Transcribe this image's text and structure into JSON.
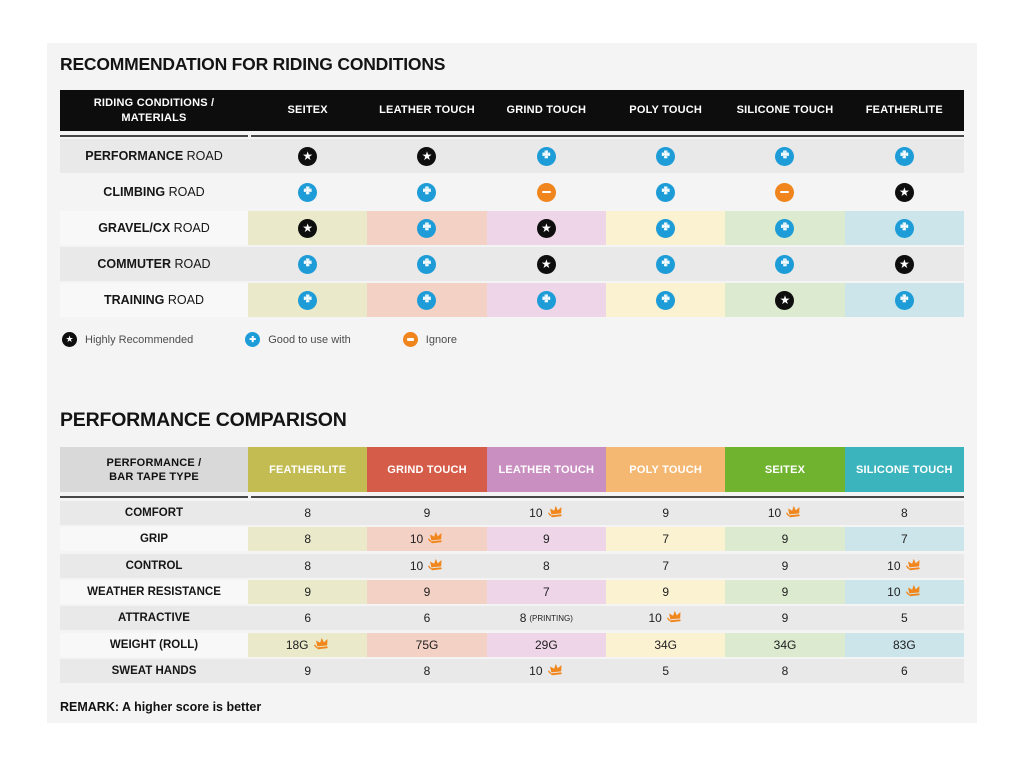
{
  "colors": {
    "blue": "#1d9cd8",
    "orange": "#f0851d",
    "black": "#0d0d0d",
    "crown": "#f0861c",
    "panel_bg": "#f4f4f4",
    "row_gray": "#e9e9e9",
    "tints": [
      "#eaeacb",
      "#f4d1c5",
      "#eed6e8",
      "#fbf2d2",
      "#dceacf",
      "#cbe5ea"
    ]
  },
  "rec": {
    "title": "RECOMMENDATION FOR RIDING CONDITIONS",
    "corner": [
      "RIDING CONDITIONS /",
      "MATERIALS"
    ],
    "columns": [
      "SEITEX",
      "LEATHER TOUCH",
      "GRIND TOUCH",
      "POLY TOUCH",
      "SILICONE TOUCH",
      "FEATHERLITE"
    ],
    "rows": [
      {
        "label_bold": "PERFORMANCE",
        "label_rest": " ROAD",
        "bg": "gray",
        "cells": [
          "star",
          "star",
          "plus",
          "plus",
          "plus",
          "plus"
        ]
      },
      {
        "label_bold": "CLIMBING",
        "label_rest": " ROAD",
        "bg": "plain",
        "cells": [
          "plus",
          "plus",
          "minus",
          "plus",
          "minus",
          "star"
        ]
      },
      {
        "label_bold": "GRAVEL/CX",
        "label_rest": " ROAD",
        "bg": "tint",
        "cells": [
          "star",
          "plus",
          "star",
          "plus",
          "plus",
          "plus"
        ]
      },
      {
        "label_bold": "COMMUTER",
        "label_rest": " ROAD",
        "bg": "gray",
        "cells": [
          "plus",
          "plus",
          "star",
          "plus",
          "plus",
          "star"
        ]
      },
      {
        "label_bold": "TRAINING",
        "label_rest": " ROAD",
        "bg": "tint",
        "cells": [
          "plus",
          "plus",
          "plus",
          "plus",
          "star",
          "plus"
        ]
      }
    ],
    "legend": [
      {
        "icon": "star",
        "label": "Highly Recommended"
      },
      {
        "icon": "plus",
        "label": "Good to use with"
      },
      {
        "icon": "minus",
        "label": "Ignore"
      }
    ]
  },
  "perf": {
    "title": "PERFORMANCE COMPARISON",
    "corner": [
      "PERFORMANCE /",
      "BAR TAPE TYPE"
    ],
    "columns": [
      {
        "label": "FEATHERLITE",
        "color": "#c3bc52"
      },
      {
        "label": "GRIND TOUCH",
        "color": "#d55c49"
      },
      {
        "label": "LEATHER TOUCH",
        "color": "#c98fc0"
      },
      {
        "label": "POLY TOUCH",
        "color": "#f5b873"
      },
      {
        "label": "SEITEX",
        "color": "#6fb32e"
      },
      {
        "label": "SILICONE TOUCH",
        "color": "#3cb4bd"
      }
    ],
    "rows": [
      {
        "label": "COMFORT",
        "bg": "gray",
        "cells": [
          {
            "v": "8"
          },
          {
            "v": "9"
          },
          {
            "v": "10",
            "crown": true
          },
          {
            "v": "9"
          },
          {
            "v": "10",
            "crown": true
          },
          {
            "v": "8"
          }
        ]
      },
      {
        "label": "GRIP",
        "bg": "tint",
        "cells": [
          {
            "v": "8"
          },
          {
            "v": "10",
            "crown": true
          },
          {
            "v": "9"
          },
          {
            "v": "7"
          },
          {
            "v": "9"
          },
          {
            "v": "7"
          }
        ]
      },
      {
        "label": "CONTROL",
        "bg": "gray",
        "cells": [
          {
            "v": "8"
          },
          {
            "v": "10",
            "crown": true
          },
          {
            "v": "8"
          },
          {
            "v": "7"
          },
          {
            "v": "9"
          },
          {
            "v": "10",
            "crown": true
          }
        ]
      },
      {
        "label": "WEATHER RESISTANCE",
        "bg": "tint",
        "cells": [
          {
            "v": "9"
          },
          {
            "v": "9"
          },
          {
            "v": "7"
          },
          {
            "v": "9"
          },
          {
            "v": "9"
          },
          {
            "v": "10",
            "crown": true
          }
        ]
      },
      {
        "label": "ATTRACTIVE",
        "bg": "gray",
        "cells": [
          {
            "v": "6"
          },
          {
            "v": "6"
          },
          {
            "v": "8",
            "suffix": "(PRINTING)"
          },
          {
            "v": "10",
            "crown": true
          },
          {
            "v": "9"
          },
          {
            "v": "5"
          }
        ]
      },
      {
        "label": "WEIGHT (ROLL)",
        "bg": "tint",
        "cells": [
          {
            "v": "18G",
            "crown": true
          },
          {
            "v": "75G"
          },
          {
            "v": "29G"
          },
          {
            "v": "34G"
          },
          {
            "v": "34G"
          },
          {
            "v": "83G"
          }
        ]
      },
      {
        "label": "SWEAT HANDS",
        "bg": "gray",
        "cells": [
          {
            "v": "9"
          },
          {
            "v": "8"
          },
          {
            "v": "10",
            "crown": true
          },
          {
            "v": "5"
          },
          {
            "v": "8"
          },
          {
            "v": "6"
          }
        ]
      }
    ],
    "remark": "REMARK: A higher score is better"
  },
  "chart_data": [
    {
      "type": "table",
      "title": "RECOMMENDATION FOR RIDING CONDITIONS",
      "row_header": "RIDING CONDITIONS / MATERIALS",
      "columns": [
        "SEITEX",
        "LEATHER TOUCH",
        "GRIND TOUCH",
        "POLY TOUCH",
        "SILICONE TOUCH",
        "FEATHERLITE"
      ],
      "rows": [
        {
          "label": "PERFORMANCE ROAD",
          "values": [
            "Highly Recommended",
            "Highly Recommended",
            "Good to use with",
            "Good to use with",
            "Good to use with",
            "Good to use with"
          ]
        },
        {
          "label": "CLIMBING ROAD",
          "values": [
            "Good to use with",
            "Good to use with",
            "Ignore",
            "Good to use with",
            "Ignore",
            "Highly Recommended"
          ]
        },
        {
          "label": "GRAVEL/CX ROAD",
          "values": [
            "Highly Recommended",
            "Good to use with",
            "Highly Recommended",
            "Good to use with",
            "Good to use with",
            "Good to use with"
          ]
        },
        {
          "label": "COMMUTER ROAD",
          "values": [
            "Good to use with",
            "Good to use with",
            "Highly Recommended",
            "Good to use with",
            "Good to use with",
            "Highly Recommended"
          ]
        },
        {
          "label": "TRAINING ROAD",
          "values": [
            "Good to use with",
            "Good to use with",
            "Good to use with",
            "Good to use with",
            "Highly Recommended",
            "Good to use with"
          ]
        }
      ],
      "legend": [
        "Highly Recommended",
        "Good to use with",
        "Ignore"
      ]
    },
    {
      "type": "table",
      "title": "PERFORMANCE COMPARISON",
      "row_header": "PERFORMANCE / BAR TAPE TYPE",
      "columns": [
        "FEATHERLITE",
        "GRIND TOUCH",
        "LEATHER TOUCH",
        "POLY TOUCH",
        "SEITEX",
        "SILICONE TOUCH"
      ],
      "rows": [
        {
          "label": "COMFORT",
          "values": [
            8,
            9,
            10,
            9,
            10,
            8
          ],
          "best": [
            "LEATHER TOUCH",
            "SEITEX"
          ]
        },
        {
          "label": "GRIP",
          "values": [
            8,
            10,
            9,
            7,
            9,
            7
          ],
          "best": [
            "GRIND TOUCH"
          ]
        },
        {
          "label": "CONTROL",
          "values": [
            8,
            10,
            8,
            7,
            9,
            10
          ],
          "best": [
            "GRIND TOUCH",
            "SILICONE TOUCH"
          ]
        },
        {
          "label": "WEATHER RESISTANCE",
          "values": [
            9,
            9,
            7,
            9,
            9,
            10
          ],
          "best": [
            "SILICONE TOUCH"
          ]
        },
        {
          "label": "ATTRACTIVE",
          "values": [
            6,
            6,
            "8 (PRINTING)",
            10,
            9,
            5
          ],
          "best": [
            "POLY TOUCH"
          ]
        },
        {
          "label": "WEIGHT (ROLL)",
          "values": [
            "18G",
            "75G",
            "29G",
            "34G",
            "34G",
            "83G"
          ],
          "best": [
            "FEATHERLITE"
          ]
        },
        {
          "label": "SWEAT HANDS",
          "values": [
            9,
            8,
            10,
            5,
            8,
            6
          ],
          "best": [
            "LEATHER TOUCH"
          ]
        }
      ],
      "remark": "REMARK: A higher score is better"
    }
  ]
}
